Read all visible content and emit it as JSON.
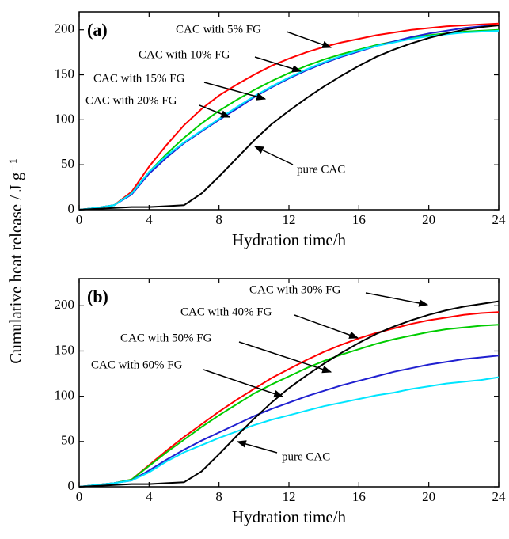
{
  "y_label": "Cumulative heat release / J g⁻¹",
  "chart_data": [
    {
      "type": "line",
      "title": "(a)",
      "x_label": "Hydration time/h",
      "x": [
        0,
        1,
        2,
        3,
        4,
        5,
        6,
        7,
        8,
        9,
        10,
        11,
        12,
        13,
        14,
        15,
        16,
        17,
        18,
        19,
        20,
        21,
        22,
        23,
        24
      ],
      "xlim": [
        0,
        24
      ],
      "xticks": [
        0,
        4,
        8,
        12,
        16,
        20,
        24
      ],
      "ylim": [
        0,
        220
      ],
      "yticks": [
        0,
        50,
        100,
        150,
        200
      ],
      "series": [
        {
          "name": "CAC with 5% FG",
          "color": "#ff0000",
          "values": [
            0,
            2,
            5,
            20,
            48,
            72,
            94,
            112,
            127,
            139,
            150,
            160,
            168,
            175,
            181,
            186,
            190,
            194,
            197,
            200,
            202,
            204,
            205,
            206,
            207
          ]
        },
        {
          "name": "CAC with 10% FG",
          "color": "#00cc00",
          "values": [
            0,
            2,
            5,
            18,
            42,
            62,
            80,
            96,
            110,
            122,
            133,
            143,
            152,
            160,
            167,
            173,
            178,
            183,
            187,
            191,
            194,
            196,
            198,
            199,
            200
          ]
        },
        {
          "name": "CAC with 15% FG",
          "color": "#2020d0",
          "values": [
            0,
            2,
            5,
            17,
            40,
            58,
            74,
            87,
            100,
            112,
            125,
            136,
            146,
            155,
            163,
            170,
            176,
            182,
            187,
            192,
            196,
            199,
            202,
            204,
            205
          ]
        },
        {
          "name": "CAC with 20% FG",
          "color": "#00e5ff",
          "values": [
            0,
            2,
            5,
            18,
            42,
            60,
            75,
            88,
            101,
            114,
            126,
            137,
            147,
            156,
            164,
            171,
            177,
            182,
            186,
            190,
            193,
            195,
            197,
            198,
            199
          ]
        },
        {
          "name": "pure CAC",
          "color": "#000000",
          "values": [
            0,
            1,
            2,
            3,
            3,
            4,
            5,
            18,
            37,
            57,
            77,
            95,
            110,
            124,
            137,
            149,
            160,
            170,
            178,
            185,
            191,
            196,
            200,
            203,
            205
          ]
        }
      ]
    },
    {
      "type": "line",
      "title": "(b)",
      "x_label": "Hydration time/h",
      "x": [
        0,
        1,
        2,
        3,
        4,
        5,
        6,
        7,
        8,
        9,
        10,
        11,
        12,
        13,
        14,
        15,
        16,
        17,
        18,
        19,
        20,
        21,
        22,
        23,
        24
      ],
      "xlim": [
        0,
        24
      ],
      "xticks": [
        0,
        4,
        8,
        12,
        16,
        20,
        24
      ],
      "ylim": [
        0,
        230
      ],
      "yticks": [
        0,
        50,
        100,
        150,
        200
      ],
      "series": [
        {
          "name": "CAC with 30% FG",
          "color": "#ff0000",
          "values": [
            0,
            2,
            4,
            8,
            24,
            40,
            55,
            69,
            83,
            96,
            108,
            120,
            130,
            140,
            149,
            157,
            164,
            170,
            175,
            180,
            184,
            187,
            190,
            192,
            193
          ]
        },
        {
          "name": "CAC with 40% FG",
          "color": "#00cc00",
          "values": [
            0,
            2,
            4,
            8,
            23,
            38,
            52,
            66,
            79,
            91,
            103,
            113,
            122,
            131,
            139,
            146,
            152,
            158,
            163,
            167,
            171,
            174,
            176,
            178,
            179
          ]
        },
        {
          "name": "CAC with 50% FG",
          "color": "#2020d0",
          "values": [
            0,
            2,
            4,
            7,
            18,
            30,
            41,
            51,
            60,
            69,
            78,
            86,
            93,
            100,
            106,
            112,
            117,
            122,
            127,
            131,
            135,
            138,
            141,
            143,
            145
          ]
        },
        {
          "name": "CAC with 60% FG",
          "color": "#00e5ff",
          "values": [
            0,
            2,
            4,
            7,
            16,
            28,
            38,
            46,
            54,
            61,
            68,
            74,
            79,
            84,
            89,
            93,
            97,
            101,
            104,
            108,
            111,
            114,
            116,
            118,
            121
          ]
        },
        {
          "name": "pure CAC",
          "color": "#000000",
          "values": [
            0,
            1,
            2,
            3,
            3,
            4,
            5,
            17,
            36,
            56,
            75,
            93,
            109,
            123,
            136,
            148,
            159,
            169,
            177,
            184,
            190,
            195,
            199,
            202,
            205
          ]
        }
      ]
    }
  ]
}
